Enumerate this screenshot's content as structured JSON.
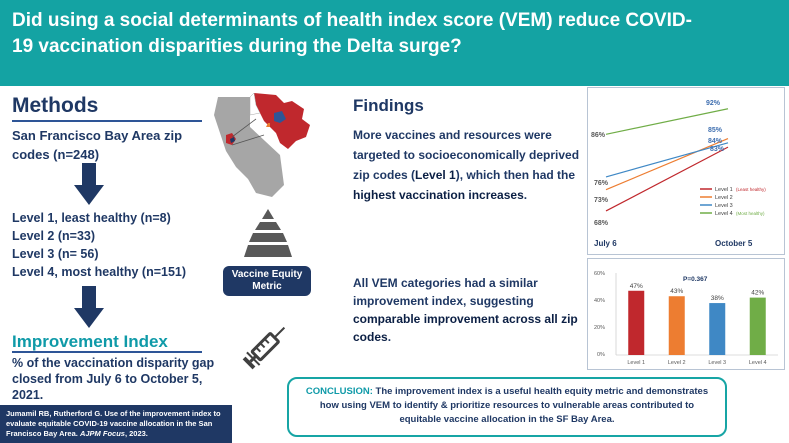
{
  "title": "Did using a social determinants of health index score (VEM) reduce COVID-19 vaccination disparities during the Delta surge?",
  "methods": {
    "heading": "Methods",
    "sample": "San Francisco Bay Area zip codes (n=248)",
    "levels": [
      "Level 1, least healthy (n=8)",
      "Level 2 (n=33)",
      "Level 3 (n= 56)",
      "Level 4, most healthy (n=151)"
    ]
  },
  "improvement": {
    "heading": "Improvement Index",
    "text": "% of the vaccination disparity gap closed from July 6 to October 5, 2021."
  },
  "citation": {
    "text": "Jumamil RB, Rutherford G. Use of the improvement index to evaluate equitable COVID-19 vaccine allocation in the San Francisco Bay Area.",
    "journal": "AJPM Focus",
    "year": ", 2023."
  },
  "vem_label": "Vaccine Equity Metric",
  "findings": {
    "heading": "Findings",
    "p1_pre": "More vaccines and resources were targeted to socioeconomically deprived zip codes (",
    "p1_bold1": "Level 1",
    "p1_mid": "), which then had the ",
    "p1_bold2": "highest vaccination increases",
    "p1_end": ".",
    "p2_pre": "All VEM categories had a similar improvement index, suggesting ",
    "p2_bold": "comparable improvement across all zip codes",
    "p2_end": "."
  },
  "conclusion": {
    "label": "CONCLUSION:",
    "text": " The improvement index is a useful health equity metric and demonstrates how using VEM to identify & prioritize resources to vulnerable areas contributed to equitable vaccine allocation in the SF Bay Area."
  },
  "colors": {
    "banner": "#14a3a3",
    "navy": "#1f3864",
    "level1": "#c0282d",
    "level2": "#ed7d31",
    "level3": "#3f88c5",
    "level4": "#70ad47"
  },
  "chart_data": [
    {
      "type": "line",
      "x": [
        "July 6",
        "October 5"
      ],
      "series": [
        {
          "name": "Level 1 (Least healthy)",
          "values": [
            68,
            83
          ],
          "color": "#c0282d"
        },
        {
          "name": "Level 2",
          "values": [
            73,
            85
          ],
          "color": "#ed7d31"
        },
        {
          "name": "Level 3",
          "values": [
            76,
            84
          ],
          "color": "#3f88c5"
        },
        {
          "name": "Level 4 (Most healthy)",
          "values": [
            86,
            92
          ],
          "color": "#70ad47"
        }
      ],
      "labels": {
        "level1_start": "68%",
        "level1_end": "83%",
        "level2_start": "73%",
        "level2_end": "85%",
        "level3_start": "76%",
        "level3_end": "84%",
        "level4_start": "86%",
        "level4_end": "92%"
      },
      "legend": [
        "Level 1",
        "Level 2",
        "Level 3",
        "Level 4"
      ],
      "legend_notes": {
        "level1": "(Least healthy)",
        "level4": "(Most healthy)"
      },
      "ylim": [
        64,
        95
      ],
      "legend_position": "right"
    },
    {
      "type": "bar",
      "categories": [
        "Level 1",
        "Level 2",
        "Level 3",
        "Level 4"
      ],
      "values": [
        47,
        43,
        38,
        42
      ],
      "data_labels": [
        "47%",
        "43%",
        "38%",
        "42%"
      ],
      "colors": [
        "#c0282d",
        "#ed7d31",
        "#3f88c5",
        "#70ad47"
      ],
      "yticks": [
        "0%",
        "20%",
        "40%",
        "60%"
      ],
      "ylim": [
        0,
        60
      ],
      "annotation": "P=0.367",
      "grid": false
    }
  ]
}
